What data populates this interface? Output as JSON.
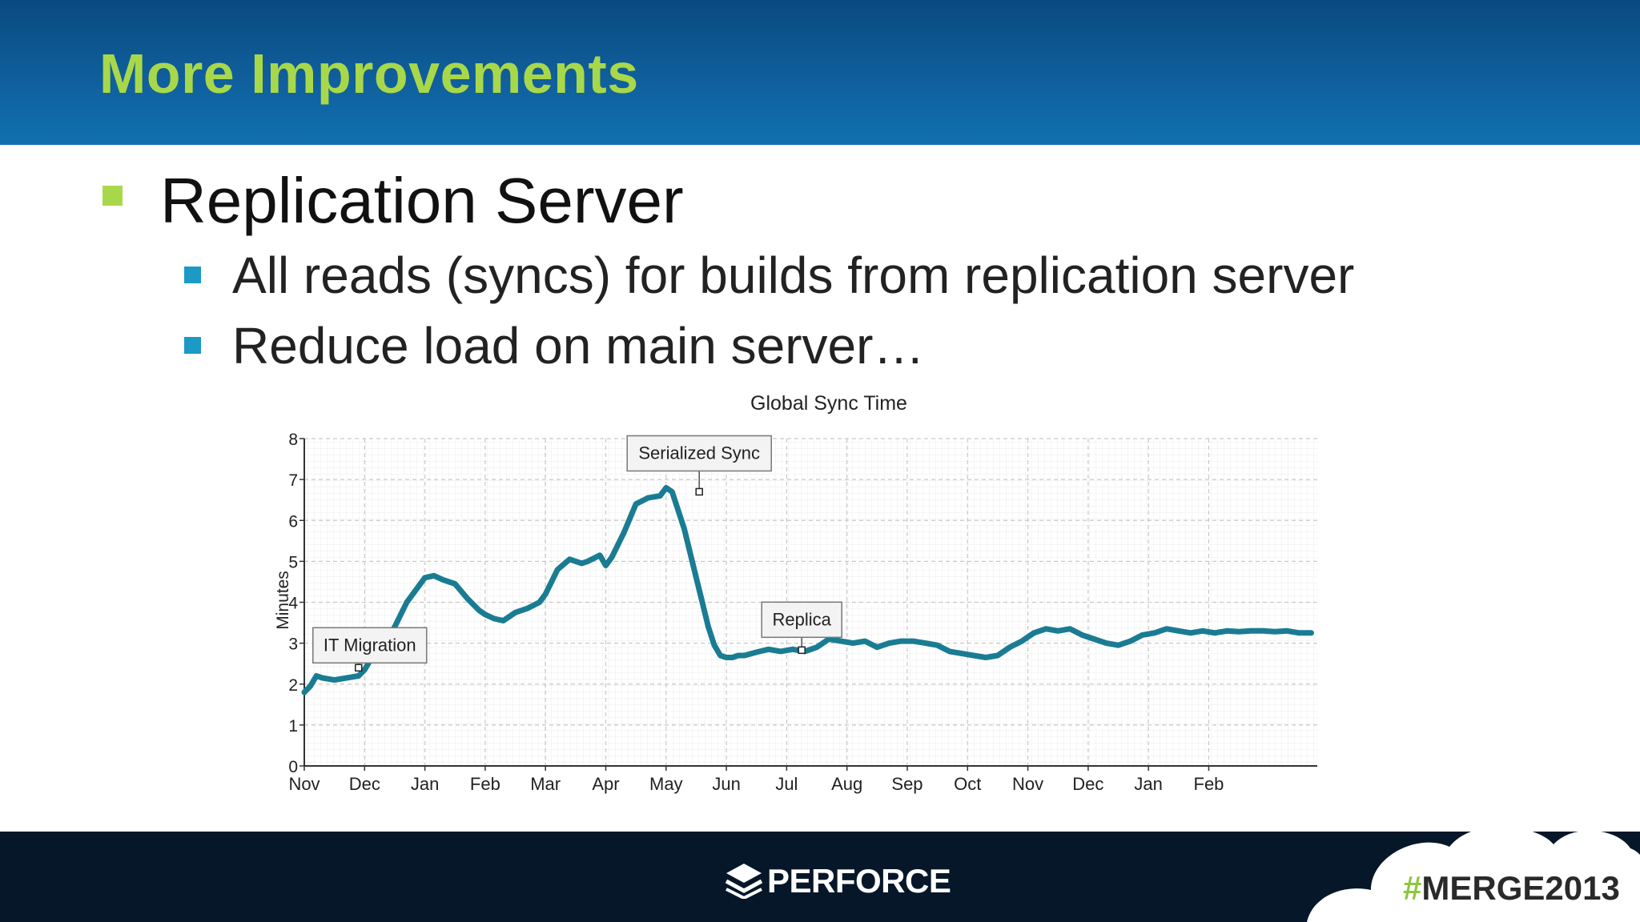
{
  "slide": {
    "title": "More Improvements",
    "heading": "Replication Server",
    "bullets": [
      "All reads (syncs) for  builds from replication server",
      "Reduce load on main server…"
    ],
    "colors": {
      "title": "#a8d84a",
      "main_bullet": "#a8d84a",
      "sub_bullet": "#1a9ac4",
      "header_band": "#0f5f9c",
      "footer_band": "#061729"
    }
  },
  "chart_data": {
    "type": "line",
    "title": "Global Sync Time",
    "ylabel": "Minutes",
    "xlabel": "",
    "ylim": [
      0,
      8
    ],
    "yticks": [
      0,
      1,
      2,
      3,
      4,
      5,
      6,
      7,
      8
    ],
    "x_tick_labels": [
      "Nov",
      "Dec",
      "Jan",
      "Feb",
      "Mar",
      "Apr",
      "May",
      "Jun",
      "Jul",
      "Aug",
      "Sep",
      "Oct",
      "Nov",
      "Dec",
      "Jan",
      "Feb"
    ],
    "x_tick_months": [
      0,
      1,
      2,
      3,
      4,
      5,
      6,
      7,
      8,
      9,
      10,
      11,
      12,
      13,
      14,
      15
    ],
    "x_range_months": [
      0,
      16.8
    ],
    "grid": true,
    "line_color": "#1a7c92",
    "series": [
      {
        "x_months": [
          0.0,
          0.1,
          0.2,
          0.3,
          0.5,
          0.7,
          0.9,
          1.0,
          1.1,
          1.3,
          1.5,
          1.7,
          1.9,
          2.0,
          2.15,
          2.3,
          2.5,
          2.7,
          2.9,
          3.0,
          3.15,
          3.3,
          3.5,
          3.7,
          3.9,
          4.0,
          4.2,
          4.4,
          4.6,
          4.7,
          4.9,
          5.0,
          5.1,
          5.3,
          5.5,
          5.7,
          5.9,
          6.0,
          6.1,
          6.3,
          6.5,
          6.6,
          6.7,
          6.8,
          6.9,
          7.0,
          7.1,
          7.2,
          7.3,
          7.5,
          7.7,
          7.9,
          8.1,
          8.3,
          8.5,
          8.7,
          8.9,
          9.1,
          9.3,
          9.5,
          9.7,
          9.9,
          10.1,
          10.3,
          10.5,
          10.7,
          10.9,
          11.1,
          11.3,
          11.5,
          11.7,
          11.9,
          12.1,
          12.3,
          12.5,
          12.7,
          12.9,
          13.1,
          13.3,
          13.5,
          13.7,
          13.9,
          14.1,
          14.3,
          14.5,
          14.7,
          14.9,
          15.1,
          15.3,
          15.5,
          15.7,
          15.9,
          16.1,
          16.3,
          16.5,
          16.7
        ],
        "values": [
          1.8,
          1.95,
          2.2,
          2.15,
          2.1,
          2.15,
          2.2,
          2.35,
          2.6,
          2.85,
          3.4,
          4.0,
          4.4,
          4.6,
          4.65,
          4.55,
          4.45,
          4.1,
          3.8,
          3.7,
          3.6,
          3.55,
          3.75,
          3.85,
          4.0,
          4.2,
          4.8,
          5.05,
          4.95,
          5.0,
          5.15,
          4.9,
          5.1,
          5.7,
          6.4,
          6.55,
          6.6,
          6.8,
          6.7,
          5.8,
          4.6,
          4.0,
          3.4,
          2.95,
          2.7,
          2.65,
          2.65,
          2.7,
          2.7,
          2.78,
          2.85,
          2.8,
          2.85,
          2.8,
          2.9,
          3.1,
          3.05,
          3.0,
          3.05,
          2.9,
          3.0,
          3.05,
          3.05,
          3.0,
          2.95,
          2.8,
          2.75,
          2.7,
          2.65,
          2.7,
          2.9,
          3.05,
          3.25,
          3.35,
          3.3,
          3.35,
          3.2,
          3.1,
          3.0,
          2.95,
          3.05,
          3.2,
          3.25,
          3.35,
          3.3,
          3.25,
          3.3,
          3.25,
          3.3,
          3.28,
          3.3,
          3.3,
          3.28,
          3.3,
          3.25,
          3.25
        ]
      }
    ],
    "annotations": [
      {
        "text": "IT Migration",
        "x_month": 0.9,
        "value": 2.4
      },
      {
        "text": "Serialized Sync",
        "x_month": 6.55,
        "value": 6.7
      },
      {
        "text": "Replica",
        "x_month": 8.25,
        "value": 2.83
      }
    ]
  },
  "footer": {
    "brand": "PERFORCE",
    "hashtag_symbol": "#",
    "hashtag_text": "MERGE2013"
  }
}
